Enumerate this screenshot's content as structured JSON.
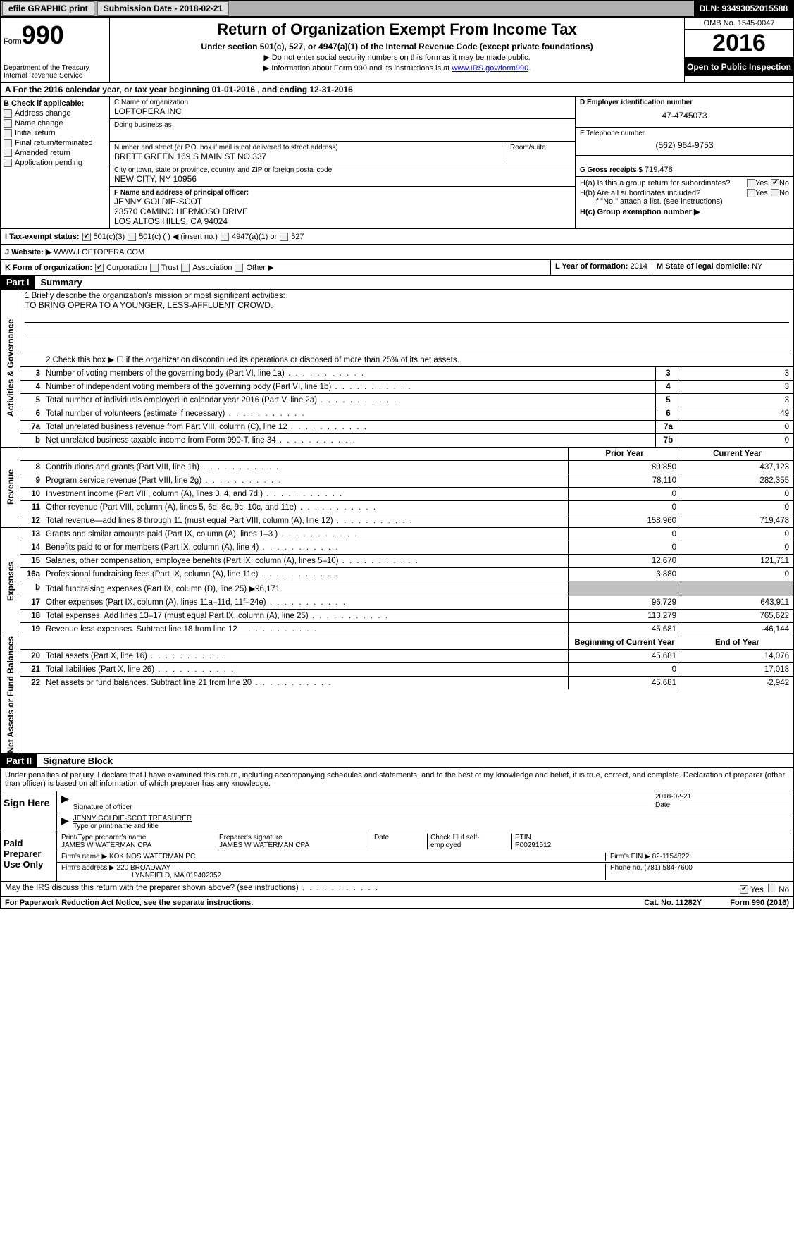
{
  "topbar": {
    "efile": "efile GRAPHIC print",
    "submission": "Submission Date - 2018-02-21",
    "dln": "DLN: 93493052015588"
  },
  "header": {
    "form": "Form",
    "form_num": "990",
    "dept": "Department of the Treasury\nInternal Revenue Service",
    "title": "Return of Organization Exempt From Income Tax",
    "subtitle": "Under section 501(c), 527, or 4947(a)(1) of the Internal Revenue Code (except private foundations)",
    "note1": "▶ Do not enter social security numbers on this form as it may be made public.",
    "note2": "▶ Information about Form 990 and its instructions is at ",
    "note2_link": "www.IRS.gov/form990",
    "omb": "OMB No. 1545-0047",
    "year": "2016",
    "open": "Open to Public Inspection"
  },
  "rowA": "A  For the 2016 calendar year, or tax year beginning 01-01-2016    , and ending 12-31-2016",
  "colB": {
    "hdr": "B Check if applicable:",
    "items": [
      "Address change",
      "Name change",
      "Initial return",
      "Final return/terminated",
      "Amended return",
      "Application pending"
    ]
  },
  "colC": {
    "name_lbl": "C Name of organization",
    "name": "LOFTOPERA INC",
    "dba_lbl": "Doing business as",
    "dba": "",
    "addr_lbl": "Number and street (or P.O. box if mail is not delivered to street address)",
    "room_lbl": "Room/suite",
    "addr": "BRETT GREEN 169 S MAIN ST NO 337",
    "city_lbl": "City or town, state or province, country, and ZIP or foreign postal code",
    "city": "NEW CITY, NY  10956",
    "officer_lbl": "F Name and address of principal officer:",
    "officer": "JENNY GOLDIE-SCOT\n23570 CAMINO HERMOSO DRIVE\nLOS ALTOS HILLS, CA  94024"
  },
  "colD": {
    "ein_lbl": "D Employer identification number",
    "ein": "47-4745073",
    "tel_lbl": "E Telephone number",
    "tel": "(562) 964-9753",
    "gross_lbl": "G Gross receipts $",
    "gross": "719,478",
    "ha": "H(a) Is this a group return for subordinates?",
    "ha_yes": "Yes",
    "ha_no": "No",
    "hb": "H(b) Are all subordinates included?",
    "hb_yes": "Yes",
    "hb_no": "No",
    "hb_note": "If \"No,\" attach a list. (see instructions)",
    "hc": "H(c) Group exemption number ▶"
  },
  "rowI": {
    "lbl": "I  Tax-exempt status:",
    "o1": "501(c)(3)",
    "o2": "501(c) (   ) ◀ (insert no.)",
    "o3": "4947(a)(1) or",
    "o4": "527"
  },
  "rowJ": {
    "lbl": "J  Website: ▶",
    "val": "WWW.LOFTOPERA.COM"
  },
  "rowK": {
    "lbl": "K Form of organization:",
    "o1": "Corporation",
    "o2": "Trust",
    "o3": "Association",
    "o4": "Other ▶"
  },
  "rowL": {
    "lbl": "L Year of formation:",
    "val": "2014"
  },
  "rowM": {
    "lbl": "M State of legal domicile:",
    "val": "NY"
  },
  "part1": {
    "hdr": "Part I",
    "title": "Summary"
  },
  "summary": {
    "gov": {
      "tab": "Activities & Governance",
      "l1": "1 Briefly describe the organization's mission or most significant activities:",
      "mission": "TO BRING OPERA TO A YOUNGER, LESS-AFFLUENT CROWD.",
      "l2": "2 Check this box ▶ ☐  if the organization discontinued its operations or disposed of more than 25% of its net assets.",
      "lines": [
        {
          "n": "3",
          "t": "Number of voting members of the governing body (Part VI, line 1a)",
          "b": "3",
          "v": "3"
        },
        {
          "n": "4",
          "t": "Number of independent voting members of the governing body (Part VI, line 1b)",
          "b": "4",
          "v": "3"
        },
        {
          "n": "5",
          "t": "Total number of individuals employed in calendar year 2016 (Part V, line 2a)",
          "b": "5",
          "v": "3"
        },
        {
          "n": "6",
          "t": "Total number of volunteers (estimate if necessary)",
          "b": "6",
          "v": "49"
        },
        {
          "n": "7a",
          "t": "Total unrelated business revenue from Part VIII, column (C), line 12",
          "b": "7a",
          "v": "0"
        },
        {
          "n": "b",
          "t": "Net unrelated business taxable income from Form 990-T, line 34",
          "b": "7b",
          "v": "0"
        }
      ]
    },
    "rev": {
      "tab": "Revenue",
      "hdr_prior": "Prior Year",
      "hdr_curr": "Current Year",
      "lines": [
        {
          "n": "8",
          "t": "Contributions and grants (Part VIII, line 1h)",
          "p": "80,850",
          "c": "437,123"
        },
        {
          "n": "9",
          "t": "Program service revenue (Part VIII, line 2g)",
          "p": "78,110",
          "c": "282,355"
        },
        {
          "n": "10",
          "t": "Investment income (Part VIII, column (A), lines 3, 4, and 7d )",
          "p": "0",
          "c": "0"
        },
        {
          "n": "11",
          "t": "Other revenue (Part VIII, column (A), lines 5, 6d, 8c, 9c, 10c, and 11e)",
          "p": "0",
          "c": "0"
        },
        {
          "n": "12",
          "t": "Total revenue—add lines 8 through 11 (must equal Part VIII, column (A), line 12)",
          "p": "158,960",
          "c": "719,478"
        }
      ]
    },
    "exp": {
      "tab": "Expenses",
      "lines": [
        {
          "n": "13",
          "t": "Grants and similar amounts paid (Part IX, column (A), lines 1–3 )",
          "p": "0",
          "c": "0"
        },
        {
          "n": "14",
          "t": "Benefits paid to or for members (Part IX, column (A), line 4)",
          "p": "0",
          "c": "0"
        },
        {
          "n": "15",
          "t": "Salaries, other compensation, employee benefits (Part IX, column (A), lines 5–10)",
          "p": "12,670",
          "c": "121,711"
        },
        {
          "n": "16a",
          "t": "Professional fundraising fees (Part IX, column (A), line 11e)",
          "p": "3,880",
          "c": "0"
        },
        {
          "n": "b",
          "t": "Total fundraising expenses (Part IX, column (D), line 25) ▶96,171",
          "p": "",
          "c": "",
          "grey": true
        },
        {
          "n": "17",
          "t": "Other expenses (Part IX, column (A), lines 11a–11d, 11f–24e)",
          "p": "96,729",
          "c": "643,911"
        },
        {
          "n": "18",
          "t": "Total expenses. Add lines 13–17 (must equal Part IX, column (A), line 25)",
          "p": "113,279",
          "c": "765,622"
        },
        {
          "n": "19",
          "t": "Revenue less expenses. Subtract line 18 from line 12",
          "p": "45,681",
          "c": "-46,144"
        }
      ]
    },
    "net": {
      "tab": "Net Assets or Fund Balances",
      "hdr_beg": "Beginning of Current Year",
      "hdr_end": "End of Year",
      "lines": [
        {
          "n": "20",
          "t": "Total assets (Part X, line 16)",
          "p": "45,681",
          "c": "14,076"
        },
        {
          "n": "21",
          "t": "Total liabilities (Part X, line 26)",
          "p": "0",
          "c": "17,018"
        },
        {
          "n": "22",
          "t": "Net assets or fund balances. Subtract line 21 from line 20",
          "p": "45,681",
          "c": "-2,942"
        }
      ]
    }
  },
  "part2": {
    "hdr": "Part II",
    "title": "Signature Block"
  },
  "perjury": "Under penalties of perjury, I declare that I have examined this return, including accompanying schedules and statements, and to the best of my knowledge and belief, it is true, correct, and complete. Declaration of preparer (other than officer) is based on all information of which preparer has any knowledge.",
  "sign": {
    "left": "Sign Here",
    "sig_lbl": "Signature of officer",
    "date_lbl": "Date",
    "date": "2018-02-21",
    "name": "JENNY GOLDIE-SCOT TREASURER",
    "name_lbl": "Type or print name and title"
  },
  "paid": {
    "left": "Paid Preparer Use Only",
    "p_name_lbl": "Print/Type preparer's name",
    "p_name": "JAMES W WATERMAN CPA",
    "p_sig_lbl": "Preparer's signature",
    "p_sig": "JAMES W WATERMAN CPA",
    "p_date_lbl": "Date",
    "p_chk": "Check ☐ if self-employed",
    "ptin_lbl": "PTIN",
    "ptin": "P00291512",
    "firm_lbl": "Firm's name    ▶",
    "firm": "KOKINOS WATERMAN PC",
    "fein_lbl": "Firm's EIN ▶",
    "fein": "82-1154822",
    "addr_lbl": "Firm's address ▶",
    "addr": "220 BROADWAY",
    "addr2": "LYNNFIELD, MA  019402352",
    "phone_lbl": "Phone no.",
    "phone": "(781) 584-7600"
  },
  "discuss": {
    "t": "May the IRS discuss this return with the preparer shown above? (see instructions)",
    "yes": "Yes",
    "no": "No"
  },
  "footer": {
    "l": "For Paperwork Reduction Act Notice, see the separate instructions.",
    "m": "Cat. No. 11282Y",
    "r": "Form 990 (2016)"
  }
}
